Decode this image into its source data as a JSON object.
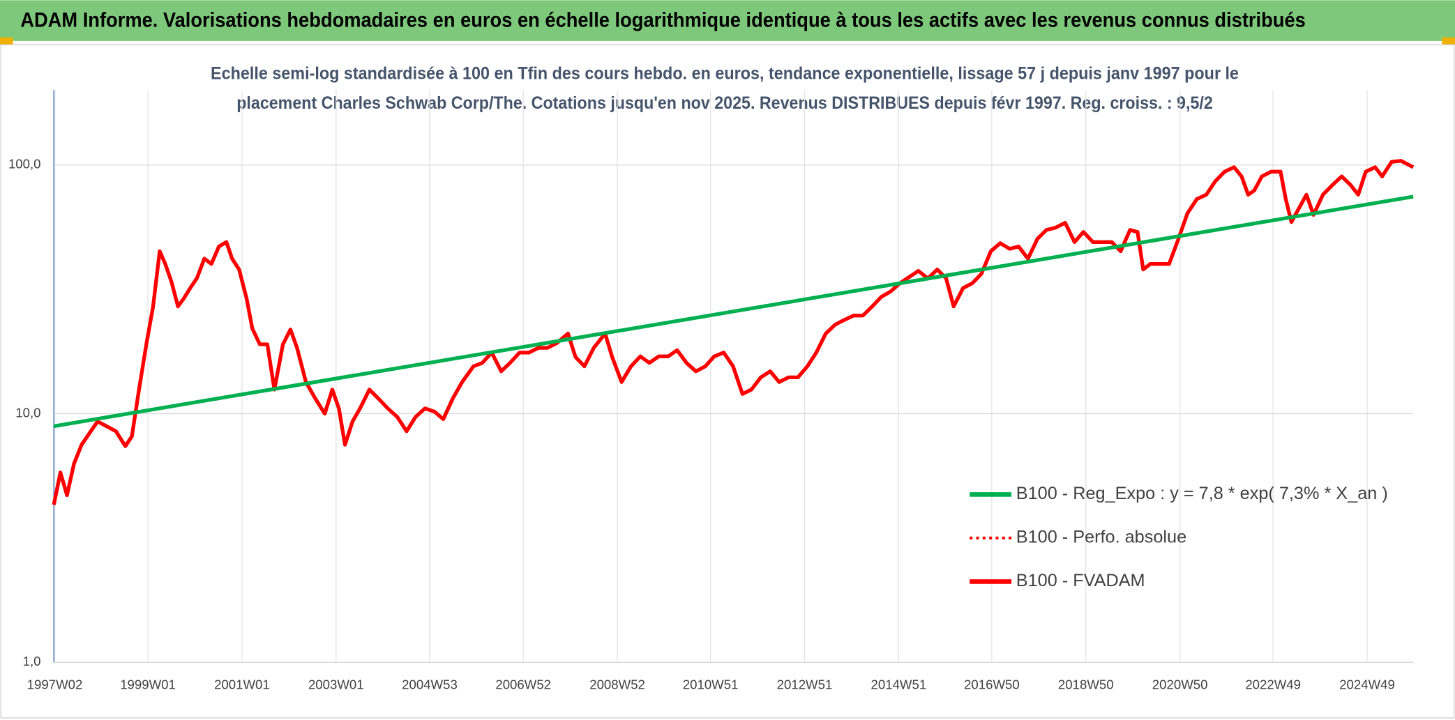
{
  "chart_data": {
    "type": "line",
    "title": "ADAM Informe. Valorisations hebdomadaires en euros en échelle logarithmique identique à tous les actifs avec les revenus connus distribués",
    "subtitle_lines": [
      "Echelle semi-log standardisée à 100 en Tfin des cours hebdo. en euros, tendance exponentielle, lissage 57 j depuis janv 1997 pour le",
      "placement Charles Schwab Corp/The. Cotations jusqu'en nov 2025. Revenus DISTRIBUES depuis févr 1997. Reg. croiss. : 9,5/2"
    ],
    "log_y": true,
    "grid": true,
    "legend": "right",
    "xlim": [
      1997.0,
      2025.9
    ],
    "ylim": [
      1,
      200
    ],
    "xticks": [
      {
        "value": 1997.02,
        "label": "1997W02"
      },
      {
        "value": 1999.0,
        "label": "1999W01"
      },
      {
        "value": 2001.0,
        "label": "2001W01"
      },
      {
        "value": 2003.0,
        "label": "2003W01"
      },
      {
        "value": 2004.99,
        "label": "2004W53"
      },
      {
        "value": 2006.98,
        "label": "2006W52"
      },
      {
        "value": 2008.98,
        "label": "2008W52"
      },
      {
        "value": 2010.96,
        "label": "2010W51"
      },
      {
        "value": 2012.96,
        "label": "2012W51"
      },
      {
        "value": 2014.96,
        "label": "2014W51"
      },
      {
        "value": 2016.94,
        "label": "2016W50"
      },
      {
        "value": 2018.94,
        "label": "2018W50"
      },
      {
        "value": 2020.94,
        "label": "2020W50"
      },
      {
        "value": 2022.92,
        "label": "2022W49"
      },
      {
        "value": 2024.92,
        "label": "2024W49"
      }
    ],
    "yticks": [
      {
        "value": 1,
        "label": "1,0"
      },
      {
        "value": 10,
        "label": "10,0"
      },
      {
        "value": 100,
        "label": "100,0"
      }
    ],
    "x": [
      1997.0,
      1997.14,
      1997.28,
      1997.43,
      1997.59,
      1997.73,
      1997.93,
      1998.12,
      1998.32,
      1998.52,
      1998.66,
      1998.81,
      1998.97,
      1999.11,
      1999.25,
      1999.37,
      1999.5,
      1999.64,
      1999.76,
      1999.9,
      2000.04,
      2000.2,
      2000.35,
      2000.51,
      2000.67,
      2000.79,
      2000.94,
      2001.1,
      2001.22,
      2001.38,
      2001.54,
      2001.69,
      2001.87,
      2002.03,
      2002.17,
      2002.36,
      2002.56,
      2002.76,
      2002.92,
      2003.06,
      2003.19,
      2003.35,
      2003.51,
      2003.71,
      2003.9,
      2004.1,
      2004.3,
      2004.5,
      2004.69,
      2004.89,
      2005.09,
      2005.28,
      2005.48,
      2005.68,
      2005.92,
      2006.11,
      2006.31,
      2006.51,
      2006.7,
      2006.9,
      2007.1,
      2007.3,
      2007.49,
      2007.69,
      2007.93,
      2008.09,
      2008.28,
      2008.48,
      2008.72,
      2008.87,
      2009.07,
      2009.27,
      2009.47,
      2009.66,
      2009.86,
      2010.06,
      2010.25,
      2010.45,
      2010.65,
      2010.85,
      2011.04,
      2011.24,
      2011.44,
      2011.64,
      2011.83,
      2012.03,
      2012.23,
      2012.42,
      2012.62,
      2012.82,
      2013.02,
      2013.21,
      2013.41,
      2013.61,
      2013.8,
      2014.0,
      2014.2,
      2014.4,
      2014.59,
      2014.79,
      2014.99,
      2015.19,
      2015.38,
      2015.58,
      2015.78,
      2015.97,
      2016.13,
      2016.33,
      2016.53,
      2016.72,
      2016.92,
      2017.12,
      2017.32,
      2017.51,
      2017.71,
      2017.91,
      2018.1,
      2018.3,
      2018.5,
      2018.7,
      2018.89,
      2019.09,
      2019.29,
      2019.49,
      2019.68,
      2019.88,
      2020.04,
      2020.16,
      2020.31,
      2020.51,
      2020.71,
      2020.91,
      2021.1,
      2021.3,
      2021.5,
      2021.69,
      2021.89,
      2022.09,
      2022.25,
      2022.39,
      2022.52,
      2022.68,
      2022.88,
      2023.08,
      2023.19,
      2023.31,
      2023.47,
      2023.63,
      2023.78,
      2023.98,
      2024.18,
      2024.38,
      2024.57,
      2024.73,
      2024.89,
      2025.09,
      2025.24,
      2025.44,
      2025.64,
      2025.9
    ],
    "series": [
      {
        "name": "B100 - Reg_Expo : y = 7,8 * exp( 7,3% *  X_an )",
        "color": "#00b050",
        "style": "solid",
        "x": [
          1997.0,
          2025.9
        ],
        "values": [
          8.9,
          74.6
        ]
      },
      {
        "name": "B100 - Perfo. absolue",
        "color": "#ff0000",
        "style": "dotted"
      },
      {
        "name": "B100 - FVADAM",
        "color": "#ff0000",
        "style": "solid",
        "values": [
          4.3,
          5.8,
          4.7,
          6.3,
          7.5,
          8.2,
          9.3,
          8.9,
          8.5,
          7.4,
          8.1,
          12.5,
          19.2,
          27,
          45,
          40,
          34,
          27,
          29,
          32,
          35,
          42,
          40,
          47,
          49,
          42,
          38,
          29,
          22,
          19,
          19,
          12.5,
          19,
          21.8,
          18.4,
          13.4,
          11.5,
          10,
          12.5,
          10.5,
          7.5,
          9.3,
          10.5,
          12.5,
          11.5,
          10.5,
          9.7,
          8.5,
          9.7,
          10.5,
          10.2,
          9.5,
          11.5,
          13.4,
          15.5,
          16,
          17.6,
          14.8,
          16,
          17.6,
          17.6,
          18.4,
          18.4,
          19.2,
          21,
          16.9,
          15.5,
          18.4,
          21,
          16.9,
          13.4,
          15.5,
          17,
          16,
          17,
          17,
          18,
          16,
          14.8,
          15.5,
          17,
          17.6,
          15.5,
          12,
          12.5,
          14,
          14.8,
          13.4,
          14,
          14,
          15.5,
          17.6,
          21,
          22.8,
          23.8,
          24.8,
          24.8,
          27,
          29.5,
          31,
          33.5,
          35.5,
          37.5,
          35,
          38,
          35,
          27,
          32,
          33.5,
          36.5,
          45,
          48.5,
          46,
          47,
          42,
          50.5,
          54.8,
          56,
          58.6,
          49,
          53.8,
          49,
          49,
          49,
          45,
          54.8,
          53.8,
          38,
          40,
          40,
          40,
          50.5,
          64,
          73,
          76,
          86,
          94,
          98,
          90,
          76,
          79,
          90,
          94,
          94,
          73,
          59,
          67,
          76,
          63,
          76,
          83,
          90,
          83,
          76,
          94,
          98,
          90,
          103,
          104,
          98
        ]
      }
    ]
  }
}
